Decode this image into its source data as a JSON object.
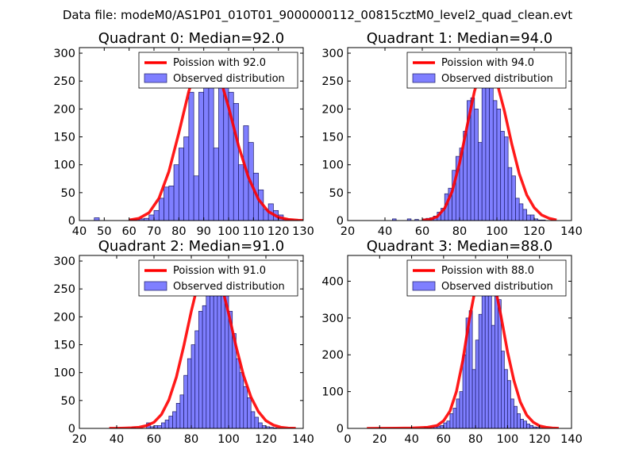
{
  "figure": {
    "suptitle": "Data file: modeM0/AS1P01_010T01_9000000112_00815cztM0_level2_quad_clean.evt"
  },
  "chart_data": [
    {
      "type": "bar",
      "title": "Quadrant 0: Median=92.0",
      "median": 92.0,
      "xlim": [
        40,
        130
      ],
      "ylim": [
        0,
        310
      ],
      "xticks": [
        "40",
        "50",
        "60",
        "70",
        "80",
        "90",
        "100",
        "110",
        "120",
        "130"
      ],
      "xtick_values": [
        40,
        50,
        60,
        70,
        80,
        90,
        100,
        110,
        120,
        130
      ],
      "yticks": [
        "0",
        "50",
        "100",
        "150",
        "200",
        "250",
        "300"
      ],
      "ytick_values": [
        0,
        50,
        100,
        150,
        200,
        250,
        300
      ],
      "legend": {
        "location": "upper-right",
        "line_label": "Poission with 92.0",
        "bar_label": "Observed distribution"
      },
      "bin_edges": [
        40,
        42,
        44,
        46,
        48,
        50,
        52,
        54,
        56,
        58,
        60,
        62,
        64,
        66,
        68,
        70,
        72,
        74,
        76,
        78,
        80,
        82,
        84,
        86,
        88,
        90,
        92,
        94,
        96,
        98,
        100,
        102,
        104,
        106,
        108,
        110,
        112,
        114,
        116,
        118,
        120,
        122,
        124,
        126,
        128,
        130
      ],
      "counts": [
        0,
        0,
        0,
        5,
        0,
        0,
        0,
        0,
        0,
        0,
        2,
        2,
        3,
        4,
        10,
        18,
        40,
        60,
        62,
        100,
        130,
        150,
        230,
        80,
        230,
        300,
        260,
        130,
        290,
        250,
        230,
        210,
        100,
        170,
        140,
        85,
        55,
        20,
        30,
        18,
        10,
        3,
        2,
        1,
        0
      ],
      "poisson_line": {
        "x": [
          60,
          64,
          68,
          72,
          76,
          80,
          84,
          88,
          92,
          96,
          100,
          104,
          108,
          112,
          116,
          120,
          124,
          128,
          130
        ],
        "y": [
          1,
          4,
          14,
          40,
          88,
          157,
          232,
          285,
          297,
          265,
          203,
          134,
          77,
          38,
          16,
          6,
          2,
          0.5,
          0.2
        ]
      }
    },
    {
      "type": "bar",
      "title": "Quadrant 1: Median=94.0",
      "median": 94.0,
      "xlim": [
        20,
        140
      ],
      "ylim": [
        0,
        310
      ],
      "xticks": [
        "20",
        "40",
        "60",
        "80",
        "100",
        "120",
        "140"
      ],
      "xtick_values": [
        20,
        40,
        60,
        80,
        100,
        120,
        140
      ],
      "yticks": [
        "0",
        "50",
        "100",
        "150",
        "200",
        "250",
        "300"
      ],
      "ytick_values": [
        0,
        50,
        100,
        150,
        200,
        250,
        300
      ],
      "legend": {
        "location": "upper-right",
        "line_label": "Poission with 94.0",
        "bar_label": "Observed distribution"
      },
      "bin_edges": [
        44,
        46,
        48,
        50,
        52,
        54,
        56,
        58,
        60,
        62,
        64,
        66,
        68,
        70,
        72,
        74,
        76,
        78,
        80,
        82,
        84,
        86,
        88,
        90,
        92,
        94,
        96,
        98,
        100,
        102,
        104,
        106,
        108,
        110,
        112,
        114,
        116,
        118,
        120,
        122,
        124,
        126,
        128,
        130,
        132,
        134
      ],
      "counts": [
        3,
        0,
        0,
        0,
        3,
        0,
        2,
        0,
        3,
        4,
        5,
        8,
        15,
        22,
        48,
        58,
        90,
        115,
        130,
        160,
        215,
        220,
        200,
        140,
        260,
        240,
        280,
        215,
        200,
        160,
        150,
        95,
        80,
        40,
        30,
        20,
        10,
        10,
        3,
        1,
        1,
        0,
        0,
        0,
        0
      ],
      "poisson_line": {
        "x": [
          60,
          64,
          68,
          72,
          76,
          80,
          84,
          88,
          92,
          96,
          100,
          104,
          108,
          112,
          116,
          120,
          124,
          128,
          132
        ],
        "y": [
          0.5,
          2,
          7,
          22,
          52,
          103,
          169,
          232,
          274,
          279,
          248,
          197,
          137,
          84,
          46,
          23,
          10,
          4,
          1
        ]
      }
    },
    {
      "type": "bar",
      "title": "Quadrant 2: Median=91.0",
      "median": 91.0,
      "xlim": [
        20,
        140
      ],
      "ylim": [
        0,
        310
      ],
      "xticks": [
        "20",
        "40",
        "60",
        "80",
        "100",
        "120",
        "140"
      ],
      "xtick_values": [
        20,
        40,
        60,
        80,
        100,
        120,
        140
      ],
      "yticks": [
        "0",
        "50",
        "100",
        "150",
        "200",
        "250",
        "300"
      ],
      "ytick_values": [
        0,
        50,
        100,
        150,
        200,
        250,
        300
      ],
      "legend": {
        "location": "upper-right",
        "line_label": "Poission with 91.0",
        "bar_label": "Observed distribution"
      },
      "bin_edges": [
        34,
        36,
        38,
        40,
        42,
        44,
        46,
        48,
        50,
        52,
        54,
        56,
        58,
        60,
        62,
        64,
        66,
        68,
        70,
        72,
        74,
        76,
        78,
        80,
        82,
        84,
        86,
        88,
        90,
        92,
        94,
        96,
        98,
        100,
        102,
        104,
        106,
        108,
        110,
        112,
        114,
        116,
        118,
        120,
        122,
        124,
        126,
        128,
        130,
        132,
        134,
        136
      ],
      "counts": [
        0,
        0,
        0,
        0,
        0,
        0,
        0,
        2,
        0,
        0,
        0,
        10,
        3,
        5,
        5,
        10,
        15,
        22,
        30,
        45,
        60,
        95,
        125,
        150,
        175,
        210,
        220,
        300,
        290,
        295,
        280,
        270,
        255,
        210,
        170,
        125,
        100,
        75,
        55,
        30,
        20,
        10,
        5,
        3,
        2,
        1,
        0,
        0,
        0,
        0,
        0
      ],
      "poisson_line": {
        "x": [
          36,
          40,
          44,
          48,
          52,
          56,
          60,
          64,
          68,
          72,
          76,
          80,
          84,
          88,
          92,
          96,
          100,
          104,
          108,
          112,
          116,
          120,
          124,
          128,
          132,
          136
        ],
        "y": [
          0.1,
          0.2,
          0.5,
          1,
          2,
          5,
          11,
          25,
          51,
          92,
          148,
          210,
          265,
          296,
          294,
          260,
          206,
          147,
          95,
          56,
          30,
          14,
          6,
          2,
          0.6,
          0.2
        ]
      }
    },
    {
      "type": "bar",
      "title": "Quadrant 3: Median=88.0",
      "median": 88.0,
      "xlim": [
        0,
        140
      ],
      "ylim": [
        0,
        470
      ],
      "xticks": [
        "0",
        "20",
        "40",
        "60",
        "80",
        "100",
        "120",
        "140"
      ],
      "xtick_values": [
        0,
        20,
        40,
        60,
        80,
        100,
        120,
        140
      ],
      "yticks": [
        "0",
        "100",
        "200",
        "300",
        "400"
      ],
      "ytick_values": [
        0,
        100,
        200,
        300,
        400
      ],
      "legend": {
        "location": "upper-right",
        "line_label": "Poission with 88.0",
        "bar_label": "Observed distribution"
      },
      "bin_edges": [
        48,
        50,
        52,
        54,
        56,
        58,
        60,
        62,
        64,
        66,
        68,
        70,
        72,
        74,
        76,
        78,
        80,
        82,
        84,
        86,
        88,
        90,
        92,
        94,
        96,
        98,
        100,
        102,
        104,
        106,
        108,
        110,
        112,
        114,
        116,
        118,
        120,
        122
      ],
      "counts": [
        3,
        2,
        3,
        4,
        6,
        8,
        15,
        20,
        40,
        55,
        80,
        100,
        200,
        300,
        320,
        160,
        240,
        310,
        430,
        400,
        450,
        280,
        380,
        350,
        210,
        160,
        130,
        80,
        60,
        40,
        25,
        20,
        12,
        8,
        4,
        3,
        1
      ],
      "poisson_line": {
        "x": [
          12,
          20,
          30,
          40,
          50,
          56,
          60,
          64,
          68,
          72,
          76,
          80,
          84,
          88,
          92,
          96,
          100,
          104,
          108,
          112,
          116,
          120,
          124,
          128,
          132
        ],
        "y": [
          0.1,
          0.2,
          0.5,
          1,
          3,
          8,
          21,
          47,
          100,
          184,
          294,
          383,
          430,
          434,
          390,
          303,
          208,
          130,
          72,
          36,
          17,
          7,
          3,
          1,
          0.3
        ]
      }
    }
  ]
}
